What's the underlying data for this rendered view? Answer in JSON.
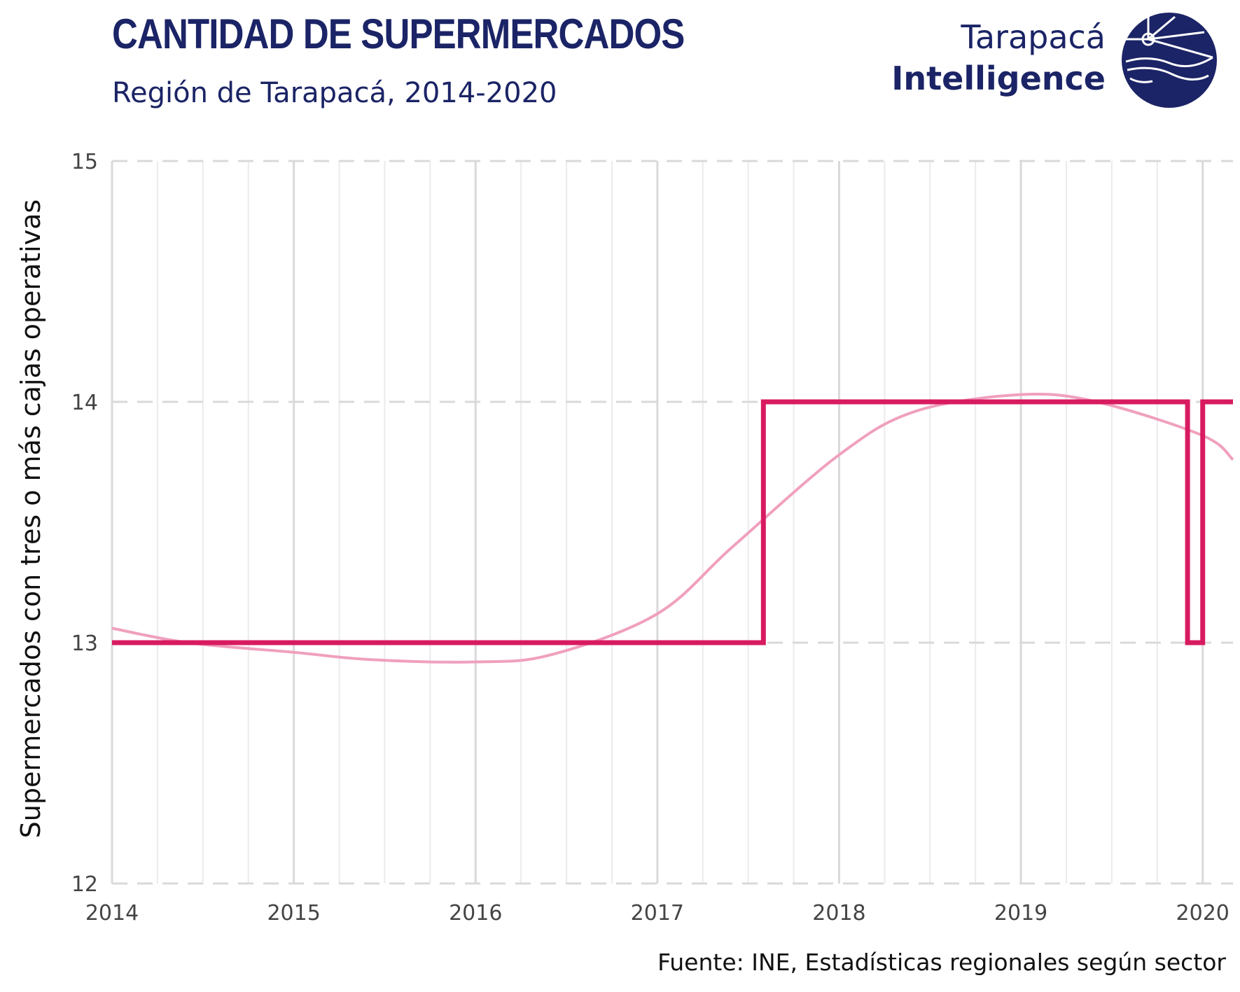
{
  "header": {
    "title": "CANTIDAD DE SUPERMERCADOS",
    "subtitle": "Región de Tarapacá, 2014-2020"
  },
  "brand": {
    "line1": "Tarapacá",
    "line2": "Intelligence",
    "logo_icon": "tarapaca-intelligence-logo-icon"
  },
  "source": "Fuente: INE, Estadísticas regionales según sector",
  "colors": {
    "brand_navy": "#1b2466",
    "series": "#d81b60",
    "trend": "#f0a0be",
    "grid": "#dddddd"
  },
  "chart_data": {
    "type": "line",
    "ylabel": "Supermercados con tres o más cajas operativas",
    "ylim": [
      12,
      15
    ],
    "xlim": [
      "2014-01",
      "2020-03"
    ],
    "xticks": [
      "2014",
      "2015",
      "2016",
      "2017",
      "2018",
      "2019",
      "2020"
    ],
    "yticks": [
      "12",
      "13",
      "14",
      "15"
    ],
    "grid": true,
    "series": [
      {
        "style": "step",
        "color": "#d81b60",
        "points": [
          [
            "2014-01",
            13
          ],
          [
            "2017-08",
            14
          ],
          [
            "2019-12",
            13
          ],
          [
            "2020-01",
            14
          ],
          [
            "2020-03",
            14
          ]
        ]
      },
      {
        "style": "smooth trend",
        "color": "#f0a0be",
        "points": [
          [
            "2014-01",
            13.06
          ],
          [
            "2014-06",
            13.0
          ],
          [
            "2015-01",
            12.96
          ],
          [
            "2015-06",
            12.93
          ],
          [
            "2016-01",
            12.92
          ],
          [
            "2016-06",
            12.95
          ],
          [
            "2017-01",
            13.12
          ],
          [
            "2017-06",
            13.4
          ],
          [
            "2018-01",
            13.78
          ],
          [
            "2018-06",
            13.96
          ],
          [
            "2019-01",
            14.03
          ],
          [
            "2019-06",
            14.0
          ],
          [
            "2020-01",
            13.86
          ],
          [
            "2020-03",
            13.76
          ]
        ]
      }
    ]
  }
}
